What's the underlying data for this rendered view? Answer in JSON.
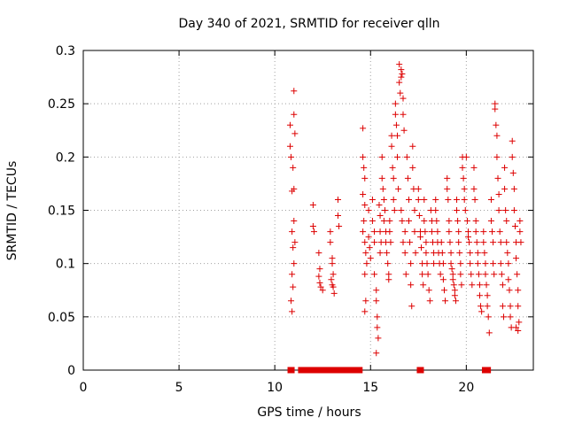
{
  "chart_data": {
    "type": "scatter",
    "title": "Day 340 of 2021, SRMTID for receiver qlln",
    "xlabel": "GPS time / hours",
    "ylabel": "SRMTID / TECUs",
    "xlim": [
      0,
      23.5
    ],
    "ylim": [
      0,
      0.3
    ],
    "grid": true,
    "marker": "+",
    "color": "#dd0000",
    "x_ticks": [
      {
        "value": 0,
        "label": "0"
      },
      {
        "value": 5,
        "label": "5"
      },
      {
        "value": 10,
        "label": "10"
      },
      {
        "value": 15,
        "label": "15"
      },
      {
        "value": 20,
        "label": "20"
      }
    ],
    "y_ticks": [
      {
        "value": 0,
        "label": "0"
      },
      {
        "value": 0.05,
        "label": "0.05"
      },
      {
        "value": 0.1,
        "label": "0.1"
      },
      {
        "value": 0.15,
        "label": "0.15"
      },
      {
        "value": 0.2,
        "label": "0.2"
      },
      {
        "value": 0.25,
        "label": "0.25"
      },
      {
        "value": 0.3,
        "label": "0.3"
      }
    ],
    "series": [
      {
        "name": "SRMTID",
        "points": [
          [
            10.8,
            0.23
          ],
          [
            10.8,
            0.21
          ],
          [
            10.85,
            0.2
          ],
          [
            10.9,
            0.168
          ],
          [
            10.9,
            0.13
          ],
          [
            10.95,
            0.115
          ],
          [
            10.9,
            0.09
          ],
          [
            10.95,
            0.078
          ],
          [
            10.85,
            0.065
          ],
          [
            10.9,
            0.055
          ],
          [
            11.0,
            0.262
          ],
          [
            11.0,
            0.24
          ],
          [
            11.05,
            0.222
          ],
          [
            10.95,
            0.19
          ],
          [
            11.0,
            0.17
          ],
          [
            11.0,
            0.14
          ],
          [
            11.05,
            0.12
          ],
          [
            11.0,
            0.1
          ],
          [
            12.0,
            0.155
          ],
          [
            12.0,
            0.135
          ],
          [
            12.05,
            0.13
          ],
          [
            12.3,
            0.11
          ],
          [
            12.35,
            0.095
          ],
          [
            12.3,
            0.088
          ],
          [
            12.35,
            0.082
          ],
          [
            12.4,
            0.078
          ],
          [
            12.5,
            0.075
          ],
          [
            12.9,
            0.13
          ],
          [
            12.9,
            0.12
          ],
          [
            13.0,
            0.105
          ],
          [
            13.0,
            0.1
          ],
          [
            13.05,
            0.09
          ],
          [
            12.95,
            0.085
          ],
          [
            13.0,
            0.08
          ],
          [
            13.05,
            0.078
          ],
          [
            13.1,
            0.072
          ],
          [
            13.3,
            0.16
          ],
          [
            13.3,
            0.145
          ],
          [
            13.35,
            0.135
          ],
          [
            14.6,
            0.227
          ],
          [
            14.6,
            0.2
          ],
          [
            14.65,
            0.19
          ],
          [
            14.7,
            0.18
          ],
          [
            14.6,
            0.165
          ],
          [
            14.7,
            0.155
          ],
          [
            14.65,
            0.14
          ],
          [
            14.6,
            0.13
          ],
          [
            14.7,
            0.12
          ],
          [
            14.75,
            0.11
          ],
          [
            14.8,
            0.1
          ],
          [
            14.7,
            0.09
          ],
          [
            14.75,
            0.065
          ],
          [
            14.7,
            0.055
          ],
          [
            14.9,
            0.15
          ],
          [
            14.9,
            0.125
          ],
          [
            14.95,
            0.115
          ],
          [
            15.0,
            0.105
          ],
          [
            15.1,
            0.16
          ],
          [
            15.1,
            0.14
          ],
          [
            15.2,
            0.13
          ],
          [
            15.2,
            0.12
          ],
          [
            15.2,
            0.09
          ],
          [
            15.3,
            0.075
          ],
          [
            15.3,
            0.065
          ],
          [
            15.35,
            0.05
          ],
          [
            15.35,
            0.04
          ],
          [
            15.4,
            0.03
          ],
          [
            15.3,
            0.016
          ],
          [
            15.45,
            0.155
          ],
          [
            15.5,
            0.145
          ],
          [
            15.5,
            0.13
          ],
          [
            15.55,
            0.12
          ],
          [
            15.5,
            0.11
          ],
          [
            15.6,
            0.2
          ],
          [
            15.6,
            0.18
          ],
          [
            15.65,
            0.17
          ],
          [
            15.7,
            0.16
          ],
          [
            15.75,
            0.15
          ],
          [
            15.7,
            0.14
          ],
          [
            15.8,
            0.13
          ],
          [
            15.8,
            0.12
          ],
          [
            15.85,
            0.11
          ],
          [
            15.9,
            0.1
          ],
          [
            15.95,
            0.09
          ],
          [
            15.95,
            0.085
          ],
          [
            16.0,
            0.14
          ],
          [
            16.0,
            0.13
          ],
          [
            16.05,
            0.12
          ],
          [
            16.1,
            0.22
          ],
          [
            16.1,
            0.21
          ],
          [
            16.15,
            0.19
          ],
          [
            16.2,
            0.18
          ],
          [
            16.2,
            0.16
          ],
          [
            16.25,
            0.15
          ],
          [
            16.3,
            0.25
          ],
          [
            16.3,
            0.24
          ],
          [
            16.35,
            0.23
          ],
          [
            16.4,
            0.22
          ],
          [
            16.4,
            0.2
          ],
          [
            16.45,
            0.17
          ],
          [
            16.5,
            0.287
          ],
          [
            16.5,
            0.27
          ],
          [
            16.55,
            0.26
          ],
          [
            16.6,
            0.282
          ],
          [
            16.6,
            0.275
          ],
          [
            16.65,
            0.278
          ],
          [
            16.7,
            0.255
          ],
          [
            16.7,
            0.24
          ],
          [
            16.75,
            0.225
          ],
          [
            16.6,
            0.15
          ],
          [
            16.65,
            0.14
          ],
          [
            16.7,
            0.12
          ],
          [
            16.8,
            0.13
          ],
          [
            16.8,
            0.11
          ],
          [
            16.85,
            0.09
          ],
          [
            16.9,
            0.2
          ],
          [
            16.95,
            0.18
          ],
          [
            17.0,
            0.16
          ],
          [
            17.0,
            0.14
          ],
          [
            17.05,
            0.12
          ],
          [
            17.1,
            0.1
          ],
          [
            17.1,
            0.08
          ],
          [
            17.15,
            0.06
          ],
          [
            17.2,
            0.21
          ],
          [
            17.2,
            0.19
          ],
          [
            17.25,
            0.17
          ],
          [
            17.3,
            0.15
          ],
          [
            17.3,
            0.13
          ],
          [
            17.35,
            0.11
          ],
          [
            17.5,
            0.17
          ],
          [
            17.5,
            0.16
          ],
          [
            17.55,
            0.145
          ],
          [
            17.6,
            0.13
          ],
          [
            17.6,
            0.125
          ],
          [
            17.65,
            0.115
          ],
          [
            17.7,
            0.1
          ],
          [
            17.7,
            0.09
          ],
          [
            17.75,
            0.08
          ],
          [
            17.8,
            0.16
          ],
          [
            17.8,
            0.14
          ],
          [
            17.85,
            0.13
          ],
          [
            17.9,
            0.12
          ],
          [
            17.9,
            0.11
          ],
          [
            17.95,
            0.1
          ],
          [
            18.0,
            0.09
          ],
          [
            18.05,
            0.075
          ],
          [
            18.1,
            0.065
          ],
          [
            18.15,
            0.15
          ],
          [
            18.2,
            0.14
          ],
          [
            18.2,
            0.13
          ],
          [
            18.25,
            0.12
          ],
          [
            18.3,
            0.11
          ],
          [
            18.3,
            0.1
          ],
          [
            18.4,
            0.16
          ],
          [
            18.4,
            0.15
          ],
          [
            18.45,
            0.14
          ],
          [
            18.5,
            0.13
          ],
          [
            18.5,
            0.12
          ],
          [
            18.55,
            0.11
          ],
          [
            18.6,
            0.1
          ],
          [
            18.65,
            0.09
          ],
          [
            18.7,
            0.12
          ],
          [
            18.75,
            0.11
          ],
          [
            18.8,
            0.1
          ],
          [
            18.8,
            0.085
          ],
          [
            18.85,
            0.075
          ],
          [
            18.9,
            0.065
          ],
          [
            19.0,
            0.18
          ],
          [
            19.0,
            0.17
          ],
          [
            19.05,
            0.16
          ],
          [
            19.1,
            0.14
          ],
          [
            19.1,
            0.13
          ],
          [
            19.15,
            0.12
          ],
          [
            19.2,
            0.11
          ],
          [
            19.2,
            0.1
          ],
          [
            19.25,
            0.095
          ],
          [
            19.3,
            0.09
          ],
          [
            19.3,
            0.085
          ],
          [
            19.35,
            0.08
          ],
          [
            19.4,
            0.075
          ],
          [
            19.4,
            0.07
          ],
          [
            19.45,
            0.065
          ],
          [
            19.5,
            0.16
          ],
          [
            19.5,
            0.15
          ],
          [
            19.55,
            0.14
          ],
          [
            19.6,
            0.13
          ],
          [
            19.6,
            0.12
          ],
          [
            19.65,
            0.11
          ],
          [
            19.7,
            0.1
          ],
          [
            19.7,
            0.09
          ],
          [
            19.75,
            0.08
          ],
          [
            19.8,
            0.2
          ],
          [
            19.8,
            0.19
          ],
          [
            19.85,
            0.18
          ],
          [
            19.9,
            0.17
          ],
          [
            19.9,
            0.16
          ],
          [
            19.95,
            0.15
          ],
          [
            20.0,
            0.2
          ],
          [
            20.05,
            0.14
          ],
          [
            20.1,
            0.13
          ],
          [
            20.1,
            0.125
          ],
          [
            20.15,
            0.12
          ],
          [
            20.2,
            0.11
          ],
          [
            20.2,
            0.1
          ],
          [
            20.25,
            0.09
          ],
          [
            20.3,
            0.08
          ],
          [
            20.4,
            0.19
          ],
          [
            20.4,
            0.17
          ],
          [
            20.45,
            0.16
          ],
          [
            20.5,
            0.14
          ],
          [
            20.5,
            0.13
          ],
          [
            20.55,
            0.12
          ],
          [
            20.6,
            0.11
          ],
          [
            20.6,
            0.1
          ],
          [
            20.65,
            0.09
          ],
          [
            20.7,
            0.08
          ],
          [
            20.7,
            0.07
          ],
          [
            20.75,
            0.06
          ],
          [
            20.8,
            0.055
          ],
          [
            20.9,
            0.13
          ],
          [
            20.9,
            0.12
          ],
          [
            20.95,
            0.11
          ],
          [
            21.0,
            0.1
          ],
          [
            21.0,
            0.09
          ],
          [
            21.05,
            0.08
          ],
          [
            21.1,
            0.07
          ],
          [
            21.1,
            0.06
          ],
          [
            21.15,
            0.05
          ],
          [
            21.2,
            0.035
          ],
          [
            21.3,
            0.16
          ],
          [
            21.3,
            0.14
          ],
          [
            21.35,
            0.13
          ],
          [
            21.4,
            0.12
          ],
          [
            21.4,
            0.1
          ],
          [
            21.45,
            0.09
          ],
          [
            21.5,
            0.25
          ],
          [
            21.5,
            0.245
          ],
          [
            21.55,
            0.23
          ],
          [
            21.6,
            0.22
          ],
          [
            21.6,
            0.2
          ],
          [
            21.65,
            0.18
          ],
          [
            21.7,
            0.165
          ],
          [
            21.7,
            0.15
          ],
          [
            21.75,
            0.13
          ],
          [
            21.8,
            0.12
          ],
          [
            21.8,
            0.1
          ],
          [
            21.85,
            0.09
          ],
          [
            21.9,
            0.08
          ],
          [
            21.9,
            0.06
          ],
          [
            21.95,
            0.05
          ],
          [
            22.0,
            0.19
          ],
          [
            22.0,
            0.17
          ],
          [
            22.05,
            0.15
          ],
          [
            22.1,
            0.14
          ],
          [
            22.1,
            0.12
          ],
          [
            22.15,
            0.11
          ],
          [
            22.2,
            0.1
          ],
          [
            22.2,
            0.085
          ],
          [
            22.25,
            0.075
          ],
          [
            22.3,
            0.06
          ],
          [
            22.3,
            0.05
          ],
          [
            22.35,
            0.04
          ],
          [
            22.4,
            0.215
          ],
          [
            22.4,
            0.2
          ],
          [
            22.45,
            0.185
          ],
          [
            22.5,
            0.17
          ],
          [
            22.5,
            0.15
          ],
          [
            22.55,
            0.135
          ],
          [
            22.6,
            0.12
          ],
          [
            22.6,
            0.105
          ],
          [
            22.65,
            0.09
          ],
          [
            22.7,
            0.075
          ],
          [
            22.7,
            0.06
          ],
          [
            22.75,
            0.045
          ],
          [
            22.8,
            0.14
          ],
          [
            22.8,
            0.13
          ],
          [
            22.85,
            0.12
          ],
          [
            22.6,
            0.04
          ],
          [
            22.7,
            0.037
          ],
          [
            10.85,
            0
          ],
          [
            11.4,
            0
          ],
          [
            11.6,
            0
          ],
          [
            11.8,
            0
          ],
          [
            12.0,
            0
          ],
          [
            12.2,
            0
          ],
          [
            12.4,
            0
          ],
          [
            12.7,
            0
          ],
          [
            13.0,
            0
          ],
          [
            13.3,
            0
          ],
          [
            13.6,
            0
          ],
          [
            13.8,
            0
          ],
          [
            14.0,
            0
          ],
          [
            14.2,
            0
          ],
          [
            14.4,
            0
          ],
          [
            17.6,
            0
          ],
          [
            21.0,
            0
          ],
          [
            21.1,
            0
          ]
        ]
      }
    ]
  }
}
